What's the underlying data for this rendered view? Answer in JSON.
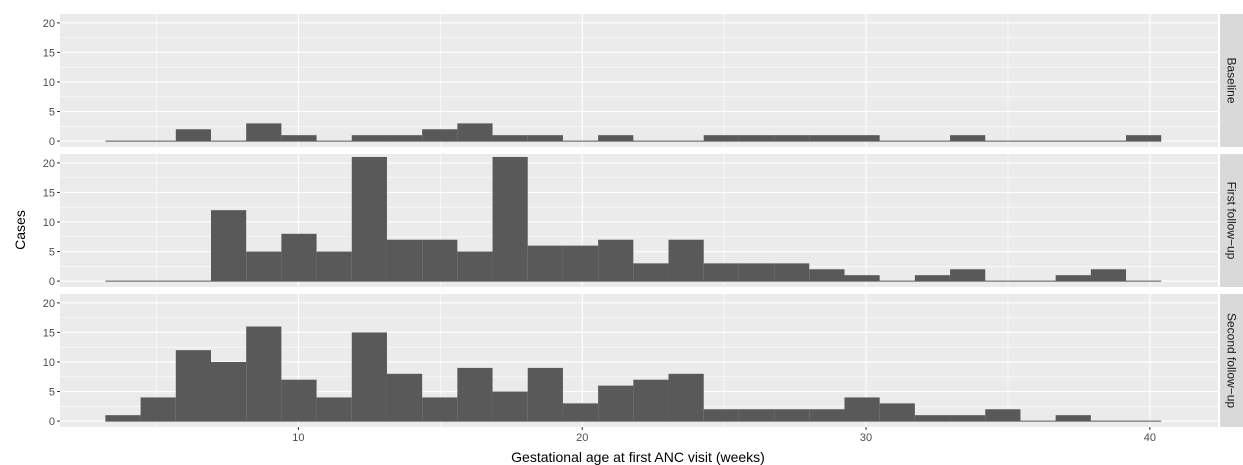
{
  "chart_data": {
    "type": "bar",
    "subtype": "faceted histogram",
    "xlabel": "Gestational age at first ANC visit (weeks)",
    "ylabel": "Cases",
    "x_ticks": [
      10,
      20,
      30,
      40
    ],
    "y_ticks": [
      0,
      5,
      10,
      15,
      20
    ],
    "xlim": [
      1.6,
      42.4
    ],
    "ylim": [
      -1,
      21.5
    ],
    "bin_start": 3.2,
    "bin_width": 1.24,
    "bin_count": 30,
    "grid": true,
    "panels": [
      {
        "name": "Baseline",
        "values": [
          0,
          0,
          2,
          0,
          3,
          1,
          0,
          1,
          1,
          2,
          3,
          1,
          1,
          0,
          1,
          0,
          0,
          1,
          1,
          1,
          1,
          1,
          0,
          0,
          1,
          0,
          0,
          0,
          0,
          1
        ]
      },
      {
        "name": "First follow−up",
        "values": [
          0,
          0,
          0,
          12,
          5,
          8,
          5,
          21,
          7,
          7,
          5,
          21,
          6,
          6,
          7,
          3,
          7,
          3,
          3,
          3,
          2,
          1,
          0,
          1,
          2,
          0,
          0,
          1,
          2,
          0
        ]
      },
      {
        "name": "Second follow−up",
        "values": [
          1,
          4,
          12,
          10,
          16,
          7,
          4,
          15,
          8,
          4,
          9,
          5,
          9,
          3,
          6,
          7,
          8,
          2,
          2,
          2,
          2,
          4,
          3,
          1,
          1,
          2,
          0,
          1,
          0,
          0
        ]
      }
    ]
  }
}
